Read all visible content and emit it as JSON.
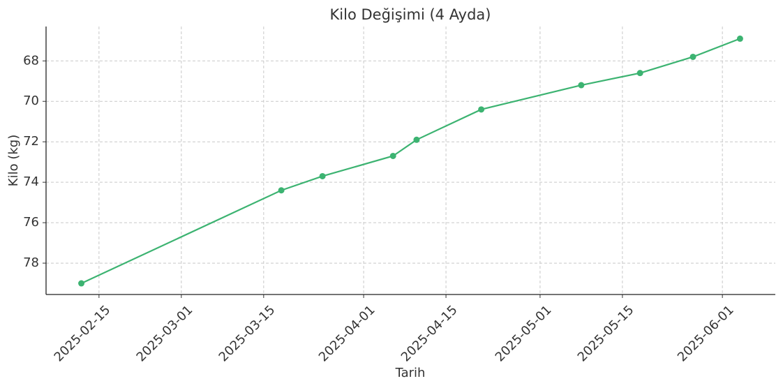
{
  "chart_data": {
    "type": "line",
    "title": "Kilo Değişimi (4 Ayda)",
    "x_label": "Tarih",
    "y_label": "Kilo (kg)",
    "x": [
      "2025-02-12",
      "2025-03-18",
      "2025-03-25",
      "2025-04-06",
      "2025-04-10",
      "2025-04-21",
      "2025-05-08",
      "2025-05-18",
      "2025-05-27",
      "2025-06-04"
    ],
    "values": [
      79.0,
      74.4,
      73.7,
      72.7,
      71.9,
      70.4,
      69.2,
      68.6,
      67.8,
      66.9
    ],
    "color": "#3cb371",
    "xlim": [
      "2025-02-06",
      "2025-06-10"
    ],
    "xticks": [
      "2025-02-15",
      "2025-03-01",
      "2025-03-15",
      "2025-04-01",
      "2025-04-15",
      "2025-05-01",
      "2025-05-15",
      "2025-06-01"
    ],
    "ylim": [
      79.55,
      66.3
    ],
    "yticks": [
      68,
      70,
      72,
      74,
      76,
      78
    ],
    "y_inverted": true,
    "grid": true
  }
}
